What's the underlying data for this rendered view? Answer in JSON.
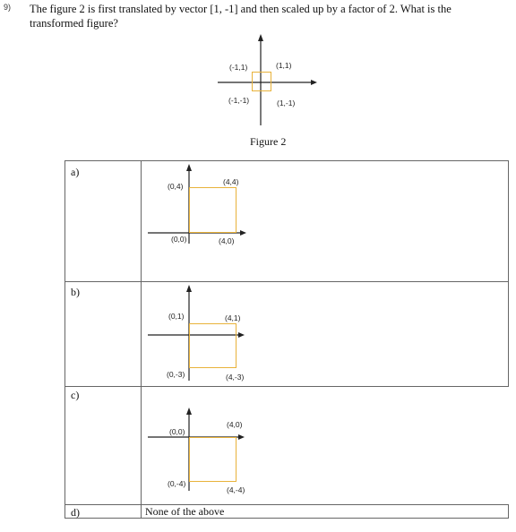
{
  "question": {
    "number": "9)",
    "text": "The figure 2 is first translated by vector [1, -1] and then scaled up by a factor of 2. What is the transformed figure?"
  },
  "figure2": {
    "caption": "Figure 2",
    "labels": [
      "(-1,1)",
      "(1,1)",
      "(-1,-1)",
      "(1,-1)"
    ]
  },
  "options": [
    {
      "letter": "a)",
      "labels": [
        "(0,4)",
        "(4,4)",
        "(0,0)",
        "(4,0)"
      ]
    },
    {
      "letter": "b)",
      "labels": [
        "(0,1)",
        "(4,1)",
        "(0,-3)",
        "(4,-3)"
      ]
    },
    {
      "letter": "c)",
      "labels": [
        "(4,0)",
        "(0,0)",
        "(0,-4)",
        "(4,-4)"
      ]
    },
    {
      "letter": "d)",
      "text": "None of the above"
    }
  ],
  "colors": {
    "square": "#e8b23a",
    "axis": "#222222"
  }
}
